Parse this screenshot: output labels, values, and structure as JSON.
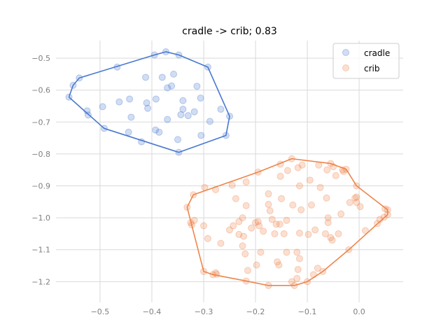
{
  "chart_data": {
    "type": "scatter",
    "title": "cradle -> crib; 0.83",
    "xlabel": "",
    "ylabel": "",
    "xlim": [
      -0.585,
      0.085
    ],
    "ylim": [
      -1.265,
      -0.445
    ],
    "xticks": [
      -0.5,
      -0.4,
      -0.3,
      -0.2,
      -0.1,
      0.0
    ],
    "xtick_labels": [
      "−0.5",
      "−0.4",
      "−0.3",
      "−0.2",
      "−0.1",
      "0.0"
    ],
    "yticks": [
      -0.5,
      -0.6,
      -0.7,
      -0.8,
      -0.9,
      -1.0,
      -1.1,
      -1.2
    ],
    "ytick_labels": [
      "−0.5",
      "−0.6",
      "−0.7",
      "−0.8",
      "−0.9",
      "−1.0",
      "−1.1",
      "−1.2"
    ],
    "grid": true,
    "legend_position": "top-right",
    "series": [
      {
        "name": "cradle",
        "color": "#4878cf",
        "points": [
          [
            -0.56,
            -0.622
          ],
          [
            -0.552,
            -0.585
          ],
          [
            -0.54,
            -0.562
          ],
          [
            -0.525,
            -0.665
          ],
          [
            -0.523,
            -0.678
          ],
          [
            -0.495,
            -0.652
          ],
          [
            -0.492,
            -0.72
          ],
          [
            -0.467,
            -0.528
          ],
          [
            -0.463,
            -0.637
          ],
          [
            -0.443,
            -0.628
          ],
          [
            -0.44,
            -0.685
          ],
          [
            -0.445,
            -0.732
          ],
          [
            -0.42,
            -0.762
          ],
          [
            -0.412,
            -0.56
          ],
          [
            -0.41,
            -0.64
          ],
          [
            -0.408,
            -0.657
          ],
          [
            -0.395,
            -0.49
          ],
          [
            -0.392,
            -0.628
          ],
          [
            -0.393,
            -0.725
          ],
          [
            -0.386,
            -0.732
          ],
          [
            -0.38,
            -0.56
          ],
          [
            -0.373,
            -0.48
          ],
          [
            -0.37,
            -0.593
          ],
          [
            -0.37,
            -0.692
          ],
          [
            -0.362,
            -0.587
          ],
          [
            -0.358,
            -0.55
          ],
          [
            -0.348,
            -0.49
          ],
          [
            -0.35,
            -0.755
          ],
          [
            -0.348,
            -0.795
          ],
          [
            -0.344,
            -0.677
          ],
          [
            -0.34,
            -0.633
          ],
          [
            -0.34,
            -0.66
          ],
          [
            -0.33,
            -0.68
          ],
          [
            -0.318,
            -0.668
          ],
          [
            -0.313,
            -0.588
          ],
          [
            -0.306,
            -0.625
          ],
          [
            -0.305,
            -0.742
          ],
          [
            -0.292,
            -0.528
          ],
          [
            -0.288,
            -0.698
          ],
          [
            -0.267,
            -0.66
          ],
          [
            -0.257,
            -0.742
          ],
          [
            -0.25,
            -0.682
          ]
        ],
        "hull": [
          [
            -0.56,
            -0.622
          ],
          [
            -0.492,
            -0.72
          ],
          [
            -0.348,
            -0.795
          ],
          [
            -0.257,
            -0.742
          ],
          [
            -0.25,
            -0.682
          ],
          [
            -0.292,
            -0.528
          ],
          [
            -0.348,
            -0.49
          ],
          [
            -0.373,
            -0.48
          ],
          [
            -0.395,
            -0.49
          ],
          [
            -0.54,
            -0.562
          ],
          [
            -0.552,
            -0.585
          ],
          [
            -0.56,
            -0.622
          ]
        ]
      },
      {
        "name": "crib",
        "color": "#ee854a",
        "points": [
          [
            -0.332,
            -0.967
          ],
          [
            -0.325,
            -1.015
          ],
          [
            -0.323,
            -1.022
          ],
          [
            -0.32,
            -0.928
          ],
          [
            -0.318,
            -1.008
          ],
          [
            -0.3,
            -1.025
          ],
          [
            -0.3,
            -1.168
          ],
          [
            -0.298,
            -0.905
          ],
          [
            -0.292,
            -1.065
          ],
          [
            -0.282,
            -1.178
          ],
          [
            -0.277,
            -1.172
          ],
          [
            -0.275,
            -1.177
          ],
          [
            -0.277,
            -0.912
          ],
          [
            -0.267,
            -1.08
          ],
          [
            -0.25,
            -1.038
          ],
          [
            -0.245,
            -0.898
          ],
          [
            -0.243,
            -1.025
          ],
          [
            -0.238,
            -0.94
          ],
          [
            -0.232,
            -1.052
          ],
          [
            -0.232,
            -1.012
          ],
          [
            -0.225,
            -1.0
          ],
          [
            -0.225,
            -1.088
          ],
          [
            -0.223,
            -1.058
          ],
          [
            -0.22,
            -1.113
          ],
          [
            -0.218,
            -0.962
          ],
          [
            -0.218,
            -0.888
          ],
          [
            -0.218,
            -1.198
          ],
          [
            -0.215,
            -1.165
          ],
          [
            -0.208,
            -1.032
          ],
          [
            -0.2,
            -1.015
          ],
          [
            -0.198,
            -1.148
          ],
          [
            -0.195,
            -0.857
          ],
          [
            -0.195,
            -1.012
          ],
          [
            -0.193,
            -1.025
          ],
          [
            -0.185,
            -1.042
          ],
          [
            -0.19,
            -1.108
          ],
          [
            -0.175,
            -1.212
          ],
          [
            -0.175,
            -0.925
          ],
          [
            -0.175,
            -0.958
          ],
          [
            -0.172,
            -0.978
          ],
          [
            -0.168,
            -1.005
          ],
          [
            -0.163,
            -1.05
          ],
          [
            -0.16,
            -1.02
          ],
          [
            -0.158,
            -1.138
          ],
          [
            -0.155,
            -1.148
          ],
          [
            -0.152,
            -0.87
          ],
          [
            -0.152,
            -0.832
          ],
          [
            -0.153,
            -1.02
          ],
          [
            -0.15,
            -0.94
          ],
          [
            -0.145,
            -1.05
          ],
          [
            -0.14,
            -1.008
          ],
          [
            -0.14,
            -1.108
          ],
          [
            -0.138,
            -0.852
          ],
          [
            -0.13,
            -0.815
          ],
          [
            -0.128,
            -0.96
          ],
          [
            -0.13,
            -1.2
          ],
          [
            -0.125,
            -1.212
          ],
          [
            -0.12,
            -1.108
          ],
          [
            -0.118,
            -0.843
          ],
          [
            -0.118,
            -1.162
          ],
          [
            -0.115,
            -1.048
          ],
          [
            -0.12,
            -1.19
          ],
          [
            -0.115,
            -0.9
          ],
          [
            -0.115,
            -1.128
          ],
          [
            -0.112,
            -0.975
          ],
          [
            -0.11,
            -0.835
          ],
          [
            -0.1,
            -1.2
          ],
          [
            -0.098,
            -1.052
          ],
          [
            -0.095,
            -0.882
          ],
          [
            -0.092,
            -0.96
          ],
          [
            -0.088,
            -1.178
          ],
          [
            -0.085,
            -1.038
          ],
          [
            -0.08,
            -1.158
          ],
          [
            -0.078,
            -0.835
          ],
          [
            -0.075,
            -0.905
          ],
          [
            -0.07,
            -1.168
          ],
          [
            -0.065,
            -1.05
          ],
          [
            -0.063,
            -0.938
          ],
          [
            -0.062,
            -0.85
          ],
          [
            -0.06,
            -1.0
          ],
          [
            -0.06,
            -1.015
          ],
          [
            -0.055,
            -1.062
          ],
          [
            -0.055,
            -0.83
          ],
          [
            -0.052,
            -1.07
          ],
          [
            -0.05,
            -0.84
          ],
          [
            -0.045,
            -0.868
          ],
          [
            -0.04,
            -1.05
          ],
          [
            -0.035,
            -0.988
          ],
          [
            -0.032,
            -0.85
          ],
          [
            -0.03,
            -0.855
          ],
          [
            -0.025,
            -0.848
          ],
          [
            -0.018,
            -0.952
          ],
          [
            -0.02,
            -1.1
          ],
          [
            -0.008,
            -0.938
          ],
          [
            -0.005,
            -0.952
          ],
          [
            -0.005,
            -0.935
          ],
          [
            -0.005,
            -0.9
          ],
          [
            0.002,
            -0.965
          ],
          [
            0.012,
            -1.04
          ],
          [
            0.035,
            -1.018
          ],
          [
            0.04,
            -1.005
          ],
          [
            0.048,
            -0.998
          ],
          [
            0.05,
            -0.972
          ],
          [
            0.055,
            -0.99
          ],
          [
            0.055,
            -0.975
          ]
        ],
        "hull": [
          [
            -0.332,
            -0.967
          ],
          [
            -0.3,
            -1.168
          ],
          [
            -0.282,
            -1.178
          ],
          [
            -0.218,
            -1.198
          ],
          [
            -0.175,
            -1.212
          ],
          [
            -0.125,
            -1.212
          ],
          [
            -0.1,
            -1.2
          ],
          [
            -0.07,
            -1.168
          ],
          [
            -0.02,
            -1.1
          ],
          [
            0.055,
            -0.99
          ],
          [
            0.055,
            -0.975
          ],
          [
            -0.005,
            -0.9
          ],
          [
            -0.025,
            -0.848
          ],
          [
            -0.055,
            -0.83
          ],
          [
            -0.13,
            -0.815
          ],
          [
            -0.195,
            -0.857
          ],
          [
            -0.32,
            -0.928
          ],
          [
            -0.332,
            -0.967
          ]
        ]
      }
    ]
  }
}
